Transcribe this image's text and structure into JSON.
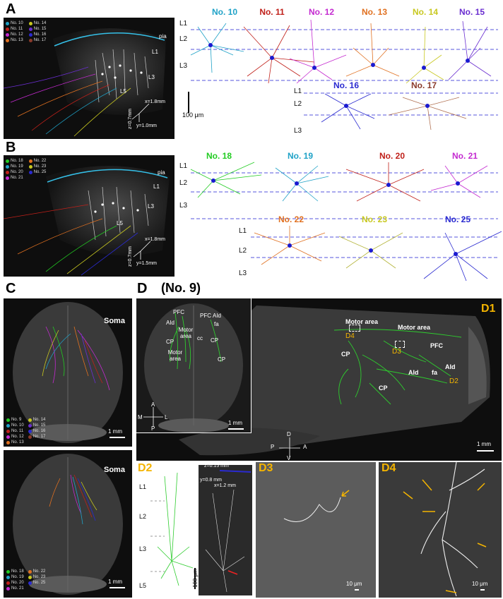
{
  "panel_letters": {
    "a": "A",
    "b": "B",
    "c": "C",
    "d": "D"
  },
  "panel_d": {
    "title": "(No. 9)",
    "d1": "D1",
    "d2": "D2",
    "d3": "D3",
    "d4": "D4"
  },
  "layers": {
    "l1": "L1",
    "l2": "L2",
    "l3": "L3",
    "l5": "L5",
    "pia": "pia"
  },
  "scale_bars": {
    "um100": "100 μm",
    "mm1": "1 mm",
    "um10": "10 μm"
  },
  "panel_a": {
    "legend": [
      {
        "label": "No. 10",
        "color": "#1fa2c7"
      },
      {
        "label": "No. 14",
        "color": "#c8c820"
      },
      {
        "label": "No. 11",
        "color": "#c0201a"
      },
      {
        "label": "No. 15",
        "color": "#6a2ed0"
      },
      {
        "label": "No. 12",
        "color": "#c42ad0"
      },
      {
        "label": "No. 16",
        "color": "#2a2ad0"
      },
      {
        "label": "No. 13",
        "color": "#e07020"
      },
      {
        "label": "No. 17",
        "color": "#8a3a2a"
      }
    ],
    "axes": {
      "x": "x=1.8mm",
      "y": "y=1.0mm",
      "z": "z=0.7mm"
    },
    "neurons": [
      {
        "label": "No. 10",
        "color": "#1fa2c7"
      },
      {
        "label": "No. 11",
        "color": "#c0201a"
      },
      {
        "label": "No. 12",
        "color": "#c42ad0"
      },
      {
        "label": "No. 13",
        "color": "#e07020"
      },
      {
        "label": "No. 14",
        "color": "#c8c820"
      },
      {
        "label": "No. 15",
        "color": "#6a2ed0"
      },
      {
        "label": "No. 16",
        "color": "#2a2ad0"
      },
      {
        "label": "No. 17",
        "color": "#8a3a2a"
      }
    ]
  },
  "panel_b": {
    "legend": [
      {
        "label": "No. 18",
        "color": "#22cc22"
      },
      {
        "label": "No. 22",
        "color": "#e07020"
      },
      {
        "label": "No. 19",
        "color": "#1fa2c7"
      },
      {
        "label": "No. 23",
        "color": "#c8c820"
      },
      {
        "label": "No. 20",
        "color": "#c0201a"
      },
      {
        "label": "No. 25",
        "color": "#2a2ad0"
      },
      {
        "label": "No. 21",
        "color": "#c42ad0"
      }
    ],
    "axes": {
      "x": "x=1.8mm",
      "y": "y=1.5mm",
      "z": "z=0.7mm"
    },
    "neurons": [
      {
        "label": "No. 18",
        "color": "#22cc22"
      },
      {
        "label": "No. 19",
        "color": "#1fa2c7"
      },
      {
        "label": "No. 20",
        "color": "#c0201a"
      },
      {
        "label": "No. 21",
        "color": "#c42ad0"
      },
      {
        "label": "No. 22",
        "color": "#e07020"
      },
      {
        "label": "No. 23",
        "color": "#c8c820"
      },
      {
        "label": "No. 25",
        "color": "#2a2ad0"
      }
    ]
  },
  "panel_c": {
    "soma": "Soma",
    "legend_top": [
      {
        "label": "No. 9",
        "color": "#22cc22"
      },
      {
        "label": "No. 14",
        "color": "#c8c820"
      },
      {
        "label": "No. 10",
        "color": "#1fa2c7"
      },
      {
        "label": "No. 15",
        "color": "#6a2ed0"
      },
      {
        "label": "No. 11",
        "color": "#c0201a"
      },
      {
        "label": "No. 16",
        "color": "#2a2ad0"
      },
      {
        "label": "No. 12",
        "color": "#c42ad0"
      },
      {
        "label": "No. 17",
        "color": "#8a3a2a"
      },
      {
        "label": "No. 13",
        "color": "#e07020"
      }
    ],
    "legend_bottom": [
      {
        "label": "No. 18",
        "color": "#22cc22"
      },
      {
        "label": "No. 22",
        "color": "#e07020"
      },
      {
        "label": "No. 19",
        "color": "#1fa2c7"
      },
      {
        "label": "No. 23",
        "color": "#c8c820"
      },
      {
        "label": "No. 20",
        "color": "#c0201a"
      },
      {
        "label": "No. 25",
        "color": "#2a2ad0"
      },
      {
        "label": "No. 21",
        "color": "#c42ad0"
      }
    ]
  },
  "panel_d1": {
    "top_labels": {
      "pfc_l": "PFC",
      "pfc_r": "PFC",
      "aid_l": "AId",
      "aid_r": "AId",
      "fa": "fa",
      "motor": "Motor area",
      "cc": "cc",
      "cp_l": "CP",
      "cp_r": "CP",
      "cp_r2": "CP",
      "motor2": "Motor area"
    },
    "compass_top": {
      "a": "A",
      "p": "P",
      "m": "M",
      "l": "L"
    },
    "side_labels": {
      "motor1": "Motor area",
      "motor2": "Motor area",
      "pfc": "PFC",
      "cp1": "CP",
      "cp2": "CP",
      "aid1": "AId",
      "aid2": "AId",
      "fa": "fa",
      "d2": "D2",
      "d3": "D3",
      "d4": "D4"
    },
    "compass_side": {
      "d": "D",
      "v": "V",
      "p": "P",
      "a": "A"
    }
  },
  "panel_d2": {
    "z": "z=0.15 mm",
    "y": "y=0.8 mm",
    "x": "x=1.2 mm"
  }
}
